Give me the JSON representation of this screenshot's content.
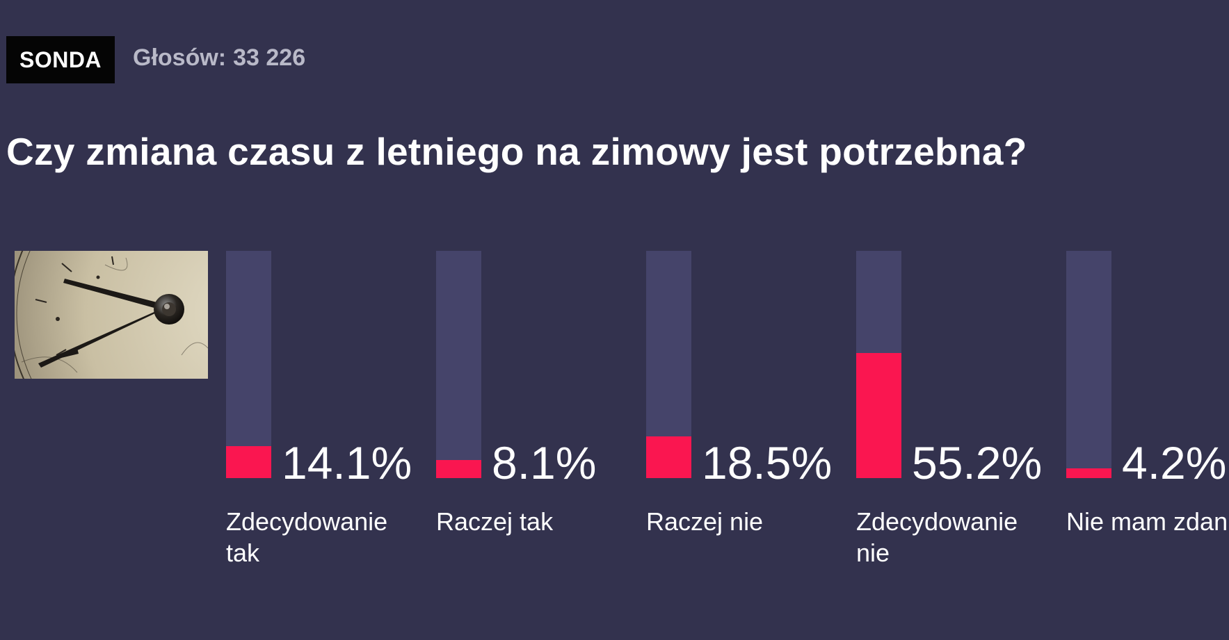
{
  "header": {
    "badge": "SONDA",
    "votes_label": "Głosów:",
    "votes_count": "33 226"
  },
  "question": "Czy zmiana czasu z letniego na zimowy jest potrzebna?",
  "colors": {
    "background": "#33324e",
    "bar_track": "#45446a",
    "bar_fill": "#fa1650",
    "badge_bg": "#050505"
  },
  "image": {
    "icon": "clock-face-photo"
  },
  "chart_data": {
    "type": "bar",
    "orientation": "vertical",
    "ylim": [
      0,
      100
    ],
    "categories": [
      "Zdecydowanie tak",
      "Raczej tak",
      "Raczej nie",
      "Zdecydowanie nie",
      "Nie mam zdania"
    ],
    "values": [
      14.1,
      8.1,
      18.5,
      55.2,
      4.2
    ],
    "value_labels": [
      "14.1%",
      "8.1%",
      "18.5%",
      "55.2%",
      "4.2%"
    ]
  }
}
